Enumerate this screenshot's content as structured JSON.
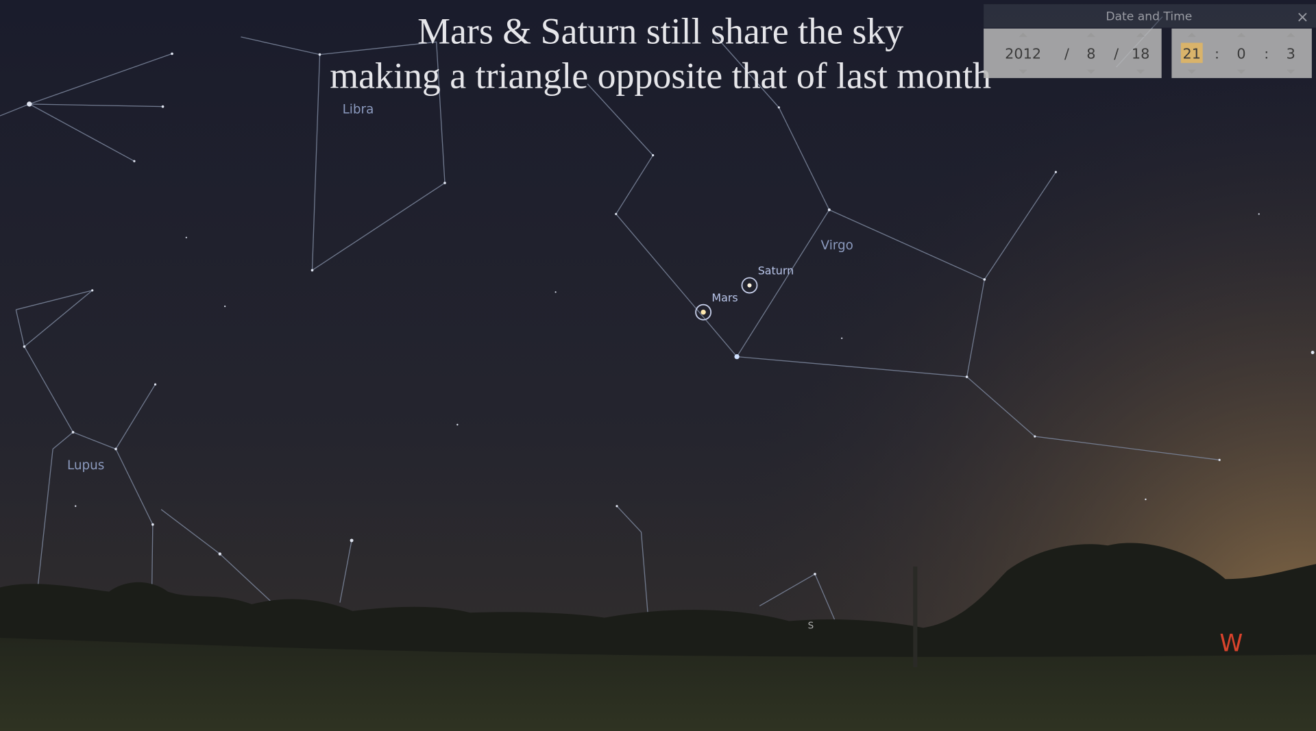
{
  "caption": {
    "line1": "Mars & Saturn still share the sky",
    "line2": "making a triangle opposite that of last month"
  },
  "sky_labels": {
    "constellations": [
      "Libra",
      "Virgo",
      "Lupus"
    ],
    "planets": [
      "Saturn",
      "Mars"
    ],
    "compass": [
      "W",
      "S"
    ]
  },
  "date_time_panel": {
    "title": "Date and Time",
    "close": "×",
    "date": {
      "year": "2012",
      "month": "8",
      "day": "18",
      "separator": "/"
    },
    "time": {
      "hour": "21",
      "minute": "0",
      "second": "3",
      "separator": ":"
    }
  }
}
